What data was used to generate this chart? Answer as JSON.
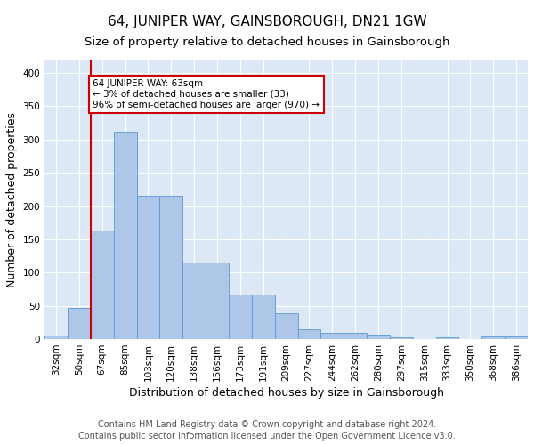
{
  "title": "64, JUNIPER WAY, GAINSBOROUGH, DN21 1GW",
  "subtitle": "Size of property relative to detached houses in Gainsborough",
  "xlabel": "Distribution of detached houses by size in Gainsborough",
  "ylabel": "Number of detached properties",
  "bar_labels": [
    "32sqm",
    "50sqm",
    "67sqm",
    "85sqm",
    "103sqm",
    "120sqm",
    "138sqm",
    "156sqm",
    "173sqm",
    "191sqm",
    "209sqm",
    "227sqm",
    "244sqm",
    "262sqm",
    "280sqm",
    "297sqm",
    "315sqm",
    "333sqm",
    "350sqm",
    "368sqm",
    "386sqm"
  ],
  "bar_values": [
    5,
    47,
    163,
    312,
    215,
    215,
    115,
    115,
    67,
    67,
    39,
    15,
    10,
    10,
    7,
    3,
    0,
    3,
    0,
    4,
    4
  ],
  "bar_color": "#aec6e8",
  "bar_edge_color": "#5b9bd5",
  "vline_color": "#cc0000",
  "annotation_text": "64 JUNIPER WAY: 63sqm\n← 3% of detached houses are smaller (33)\n96% of semi-detached houses are larger (970) →",
  "annotation_box_color": "#ffffff",
  "annotation_box_edge": "#cc0000",
  "ylim": [
    0,
    420
  ],
  "yticks": [
    0,
    50,
    100,
    150,
    200,
    250,
    300,
    350,
    400
  ],
  "background_color": "#dce8f5",
  "footer1": "Contains HM Land Registry data © Crown copyright and database right 2024.",
  "footer2": "Contains public sector information licensed under the Open Government Licence v3.0.",
  "title_fontsize": 11,
  "subtitle_fontsize": 9.5,
  "axis_label_fontsize": 9,
  "tick_fontsize": 7.5,
  "footer_fontsize": 7
}
